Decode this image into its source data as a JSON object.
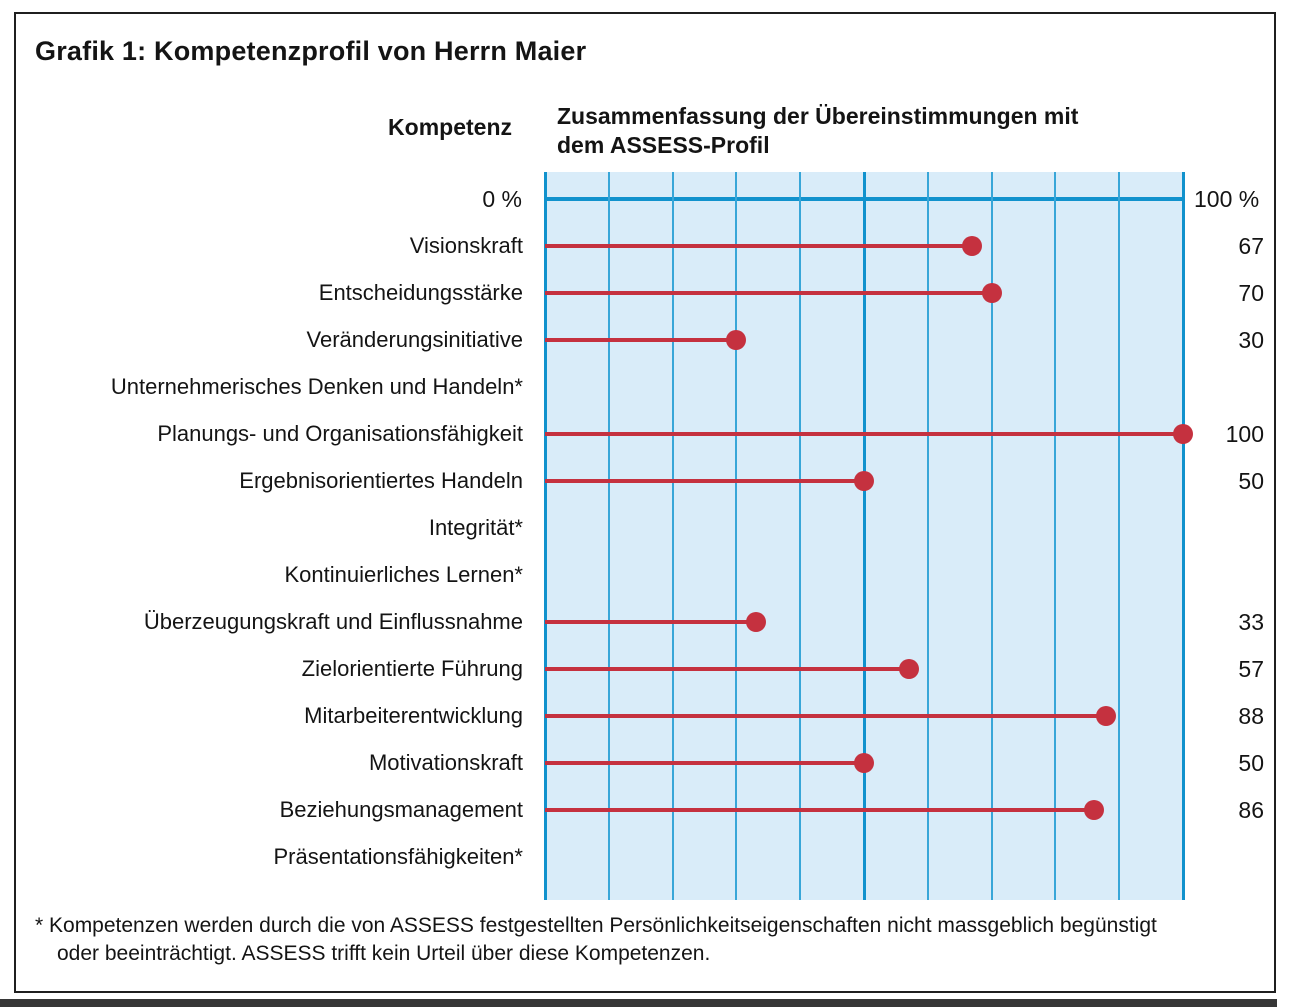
{
  "title": "Grafik 1: Kompetenzprofil von Herrn Maier",
  "column_headers": {
    "kompetenz": "Kompetenz",
    "summary_lines": [
      "Zusammenfassung der Übereinstimmungen mit",
      "dem ASSESS-Profil"
    ]
  },
  "axis_labels": {
    "left": "0 %",
    "right": "100 %"
  },
  "footnote_lines": [
    "* Kompetenzen werden durch die von ASSESS festgestellten Persönlichkeitseigenschaften nicht massgeblich begünstigt",
    "oder beeinträchtigt. ASSESS trifft kein Urteil über diese Kompetenzen."
  ],
  "colors": {
    "plot_background": "#d9ecf9",
    "grid_thin": "#38a6d8",
    "grid_thick": "#1192cd",
    "marker_red": "#c5313f",
    "text": "#141414",
    "page_border": "#1f1f1f",
    "bottom_bar": "#373737"
  },
  "chart_data": {
    "type": "bar",
    "subtype": "horizontal-lollipop",
    "title": "Grafik 1: Kompetenzprofil von Herrn Maier",
    "xlabel": "Zusammenfassung der Übereinstimmungen mit dem ASSESS-Profil",
    "ylabel": "Kompetenz",
    "xlim": [
      0,
      100
    ],
    "grid_step": 10,
    "grid_on": true,
    "x_axis_tick_labels": [
      "0 %",
      "100 %"
    ],
    "categories": [
      "Visionskraft",
      "Entscheidungsstärke",
      "Veränderungsinitiative",
      "Unternehmerisches Denken und Handeln*",
      "Planungs- und Organisationsfähigkeit",
      "Ergebnisorientiertes Handeln",
      "Integrität*",
      "Kontinuierliches Lernen*",
      "Überzeugungskraft und Einflussnahme",
      "Zielorientierte Führung",
      "Mitarbeiterentwicklung",
      "Motivationskraft",
      "Beziehungsmanagement",
      "Präsentationsfähigkeiten*"
    ],
    "values": [
      67,
      70,
      30,
      null,
      100,
      50,
      null,
      null,
      33,
      57,
      88,
      50,
      86,
      null
    ],
    "null_meaning": "asterisked competencies: ASSESS makes no judgement, see footnote"
  }
}
